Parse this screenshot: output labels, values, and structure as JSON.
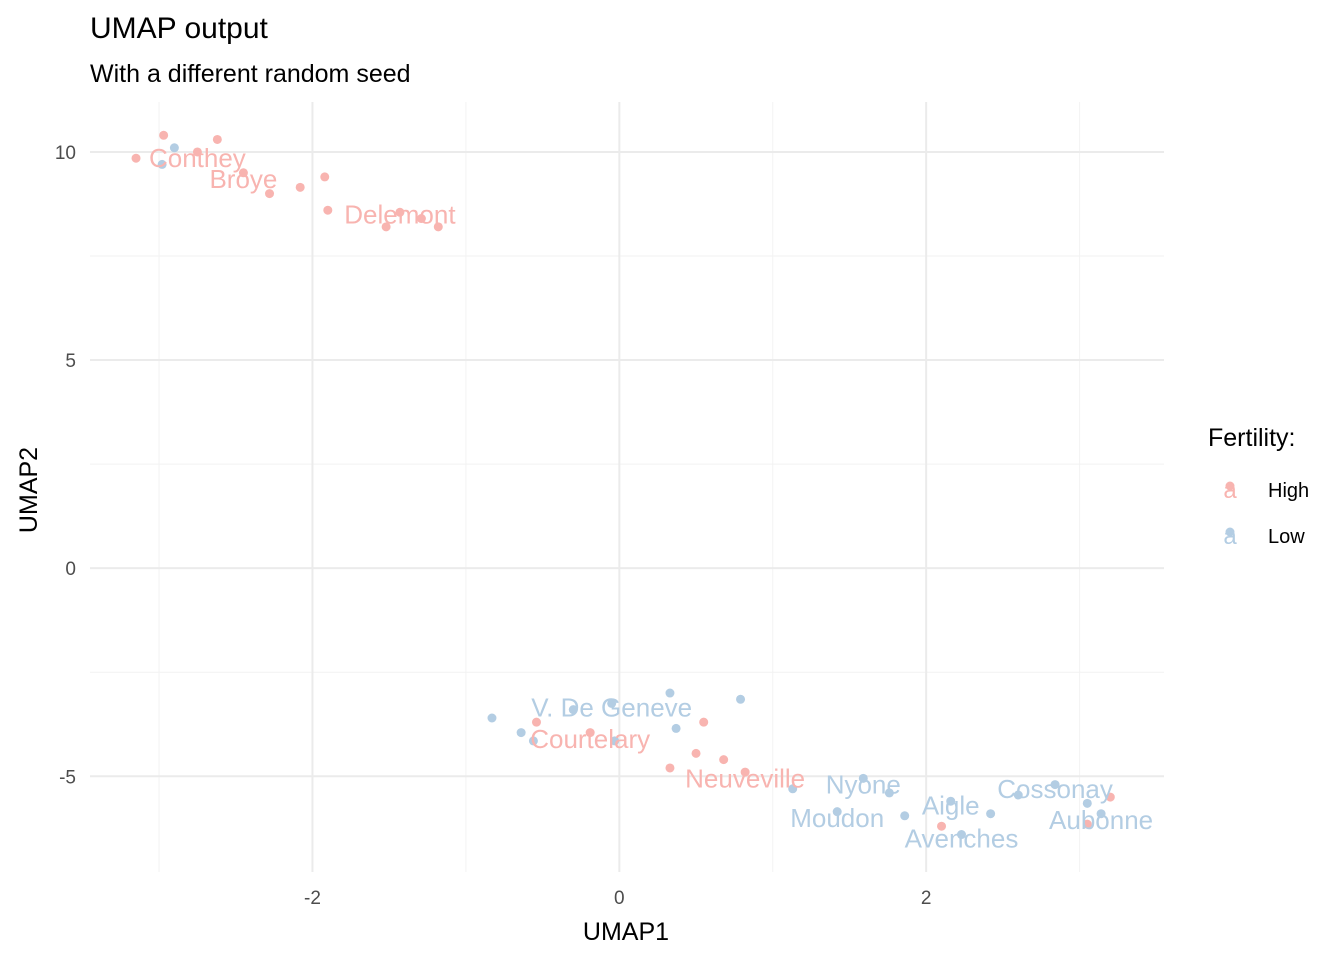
{
  "chart_data": {
    "type": "scatter",
    "title": "UMAP output",
    "subtitle": "With a different random seed",
    "xlabel": "UMAP1",
    "ylabel": "UMAP2",
    "xlim": [
      -3.45,
      3.55
    ],
    "ylim": [
      -7.3,
      11.2
    ],
    "xticks": [
      -2,
      0,
      2
    ],
    "yticks": [
      -5,
      0,
      5,
      10
    ],
    "grid": true,
    "legend": {
      "title": "Fertility:",
      "position": "right",
      "entries": [
        {
          "name": "High",
          "color": "#f8b4b0",
          "glyph": "a"
        },
        {
          "name": "Low",
          "color": "#b3cde3",
          "glyph": "a"
        }
      ]
    },
    "series": [
      {
        "name": "High",
        "color": "#f8b4b0",
        "points": [
          {
            "x": -3.15,
            "y": 9.85
          },
          {
            "x": -2.97,
            "y": 10.4
          },
          {
            "x": -2.62,
            "y": 10.3
          },
          {
            "x": -2.75,
            "y": 10.0
          },
          {
            "x": -2.45,
            "y": 9.5
          },
          {
            "x": -2.28,
            "y": 9.0
          },
          {
            "x": -2.08,
            "y": 9.15
          },
          {
            "x": -1.92,
            "y": 9.4
          },
          {
            "x": -1.9,
            "y": 8.6
          },
          {
            "x": -1.52,
            "y": 8.2
          },
          {
            "x": -1.43,
            "y": 8.55
          },
          {
            "x": -1.29,
            "y": 8.4
          },
          {
            "x": -1.18,
            "y": 8.2
          },
          {
            "x": -0.54,
            "y": -3.7
          },
          {
            "x": -0.19,
            "y": -3.95
          },
          {
            "x": 0.55,
            "y": -3.7
          },
          {
            "x": 0.5,
            "y": -4.45
          },
          {
            "x": 0.68,
            "y": -4.6
          },
          {
            "x": 0.33,
            "y": -4.8
          },
          {
            "x": 0.82,
            "y": -4.9
          },
          {
            "x": 2.1,
            "y": -6.2
          },
          {
            "x": 3.2,
            "y": -5.5
          },
          {
            "x": 3.05,
            "y": -6.15
          }
        ]
      },
      {
        "name": "Low",
        "color": "#b3cde3",
        "points": [
          {
            "x": -2.9,
            "y": 10.1
          },
          {
            "x": -2.98,
            "y": 9.7
          },
          {
            "x": -0.83,
            "y": -3.6
          },
          {
            "x": -0.64,
            "y": -3.95
          },
          {
            "x": -0.56,
            "y": -4.15
          },
          {
            "x": -0.3,
            "y": -3.4
          },
          {
            "x": -0.05,
            "y": -3.25
          },
          {
            "x": 0.33,
            "y": -3.0
          },
          {
            "x": 0.37,
            "y": -3.85
          },
          {
            "x": 0.79,
            "y": -3.15
          },
          {
            "x": -0.03,
            "y": -4.15
          },
          {
            "x": 1.13,
            "y": -5.3
          },
          {
            "x": 1.42,
            "y": -5.85
          },
          {
            "x": 1.59,
            "y": -5.05
          },
          {
            "x": 1.76,
            "y": -5.4
          },
          {
            "x": 1.86,
            "y": -5.95
          },
          {
            "x": 2.16,
            "y": -5.6
          },
          {
            "x": 2.23,
            "y": -6.4
          },
          {
            "x": 2.42,
            "y": -5.9
          },
          {
            "x": 2.6,
            "y": -5.45
          },
          {
            "x": 2.84,
            "y": -5.2
          },
          {
            "x": 3.05,
            "y": -5.65
          },
          {
            "x": 3.14,
            "y": -5.9
          }
        ]
      }
    ],
    "labels": [
      {
        "text": "Conthey",
        "x": -2.75,
        "y": 9.85,
        "group": "High"
      },
      {
        "text": "Broye",
        "x": -2.45,
        "y": 9.35,
        "group": "High"
      },
      {
        "text": "Delemont",
        "x": -1.43,
        "y": 8.5,
        "group": "High"
      },
      {
        "text": "Courtelary",
        "x": -0.19,
        "y": -4.1,
        "group": "High"
      },
      {
        "text": "Neuveville",
        "x": 0.82,
        "y": -5.05,
        "group": "High"
      },
      {
        "text": "V. De Geneve",
        "x": -0.05,
        "y": -3.35,
        "group": "Low"
      },
      {
        "text": "Nyone",
        "x": 1.59,
        "y": -5.2,
        "group": "Low"
      },
      {
        "text": "Moudon",
        "x": 1.42,
        "y": -6.0,
        "group": "Low"
      },
      {
        "text": "Aigle",
        "x": 2.16,
        "y": -5.7,
        "group": "Low"
      },
      {
        "text": "Avenches",
        "x": 2.23,
        "y": -6.5,
        "group": "Low"
      },
      {
        "text": "Cossonay",
        "x": 2.84,
        "y": -5.3,
        "group": "Low"
      },
      {
        "text": "Aubonne",
        "x": 3.14,
        "y": -6.05,
        "group": "Low"
      }
    ]
  }
}
